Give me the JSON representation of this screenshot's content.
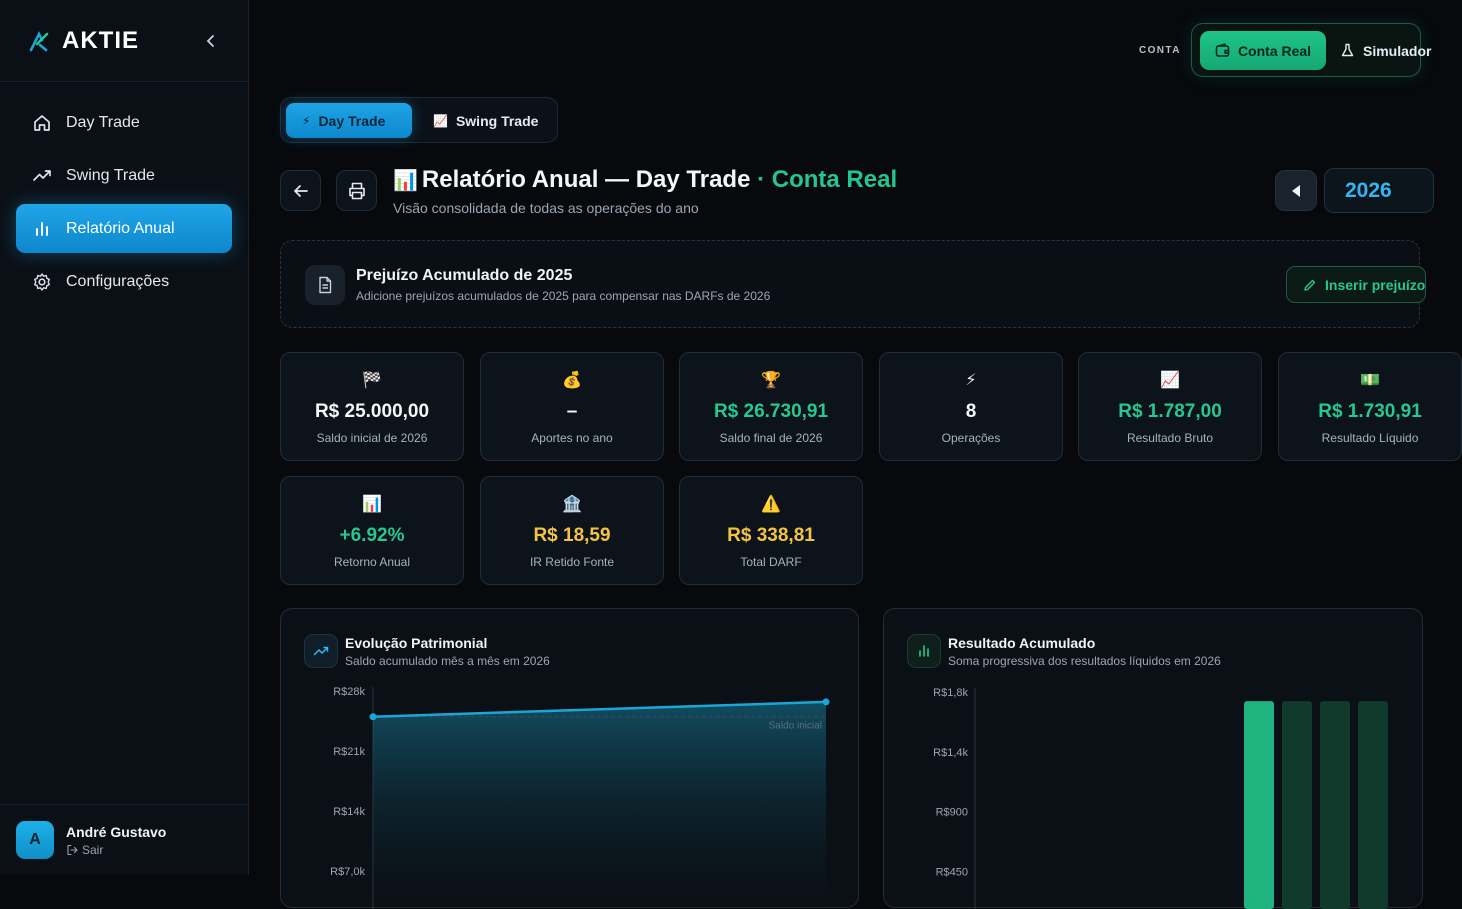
{
  "brand": {
    "name": "AKTIE"
  },
  "sidebar": {
    "items": [
      {
        "label": "Day Trade",
        "icon": "home-icon"
      },
      {
        "label": "Swing Trade",
        "icon": "trending-up-icon"
      },
      {
        "label": "Relatório Anual",
        "icon": "bar-chart-icon",
        "active": true
      },
      {
        "label": "Configurações",
        "icon": "gear-icon"
      }
    ],
    "user": {
      "initial": "A",
      "name": "André Gustavo",
      "logout": "Sair"
    }
  },
  "topbar": {
    "conta_label": "CONTA",
    "real_label": "Conta Real",
    "sim_label": "Simulador"
  },
  "mode_tabs": [
    {
      "emoji": "⚡",
      "label": "Day Trade",
      "active": true
    },
    {
      "emoji": "📈",
      "label": "Swing Trade",
      "active": false
    }
  ],
  "header": {
    "emoji": "📊",
    "title": "Relatório Anual — Day Trade",
    "title_accent": "· Conta Real",
    "subtitle": "Visão consolidada de todas as operações do ano",
    "year": "2026"
  },
  "banner": {
    "title": "Prejuízo Acumulado de 2025",
    "subtitle": "Adicione prejuízos acumulados de 2025 para compensar nas DARFs de 2026",
    "button": "Inserir prejuízo"
  },
  "stats": [
    {
      "emoji": "🏁",
      "value": "R$ 25.000,00",
      "label": "Saldo inicial de 2026",
      "tone": "white"
    },
    {
      "emoji": "💰",
      "value": "–",
      "label": "Aportes no ano",
      "tone": "white"
    },
    {
      "emoji": "🏆",
      "value": "R$ 26.730,91",
      "label": "Saldo final de 2026",
      "tone": "green"
    },
    {
      "emoji": "⚡",
      "value": "8",
      "label": "Operações",
      "tone": "white"
    },
    {
      "emoji": "📈",
      "value": "R$ 1.787,00",
      "label": "Resultado Bruto",
      "tone": "green"
    },
    {
      "emoji": "💵",
      "value": "R$ 1.730,91",
      "label": "Resultado Líquido",
      "tone": "green"
    },
    {
      "emoji": "📊",
      "value": "+6.92%",
      "label": "Retorno Anual",
      "tone": "green"
    },
    {
      "emoji": "🏦",
      "value": "R$ 18,59",
      "label": "IR Retido Fonte",
      "tone": "yellow"
    },
    {
      "emoji": "⚠️",
      "value": "R$ 338,81",
      "label": "Total DARF",
      "tone": "yellow"
    }
  ],
  "charts": {
    "evolucao": {
      "title": "Evolução Patrimonial",
      "subtitle": "Saldo acumulado mês a mês em 2026",
      "accent": "#1ba6d6"
    },
    "resultado": {
      "title": "Resultado Acumulado",
      "subtitle": "Soma progressiva dos resultados líquidos em 2026",
      "accent": "#1fb47f"
    }
  },
  "chart_data": [
    {
      "type": "area",
      "title": "Evolução Patrimonial",
      "y_ticks": [
        "R$28k",
        "R$21k",
        "R$14k",
        "R$7,0k"
      ],
      "y_tick_values": [
        28000,
        21000,
        14000,
        7000
      ],
      "ylim": [
        0,
        28000
      ],
      "series": [
        {
          "values": [
            25000,
            26730.91
          ]
        }
      ],
      "reference_line": {
        "label": "Saldo inicial",
        "value": 25000
      }
    },
    {
      "type": "bar",
      "title": "Resultado Acumulado",
      "y_ticks": [
        "R$1,8k",
        "R$1,4k",
        "R$900",
        "R$450"
      ],
      "y_tick_values": [
        1800,
        1350,
        900,
        450
      ],
      "ylim": [
        0,
        1800
      ],
      "categories_visible": 4,
      "series": [
        {
          "values": [
            1730.91,
            1730.91,
            1730.91,
            1730.91
          ],
          "highlight": [
            true,
            false,
            false,
            false
          ]
        }
      ]
    }
  ]
}
